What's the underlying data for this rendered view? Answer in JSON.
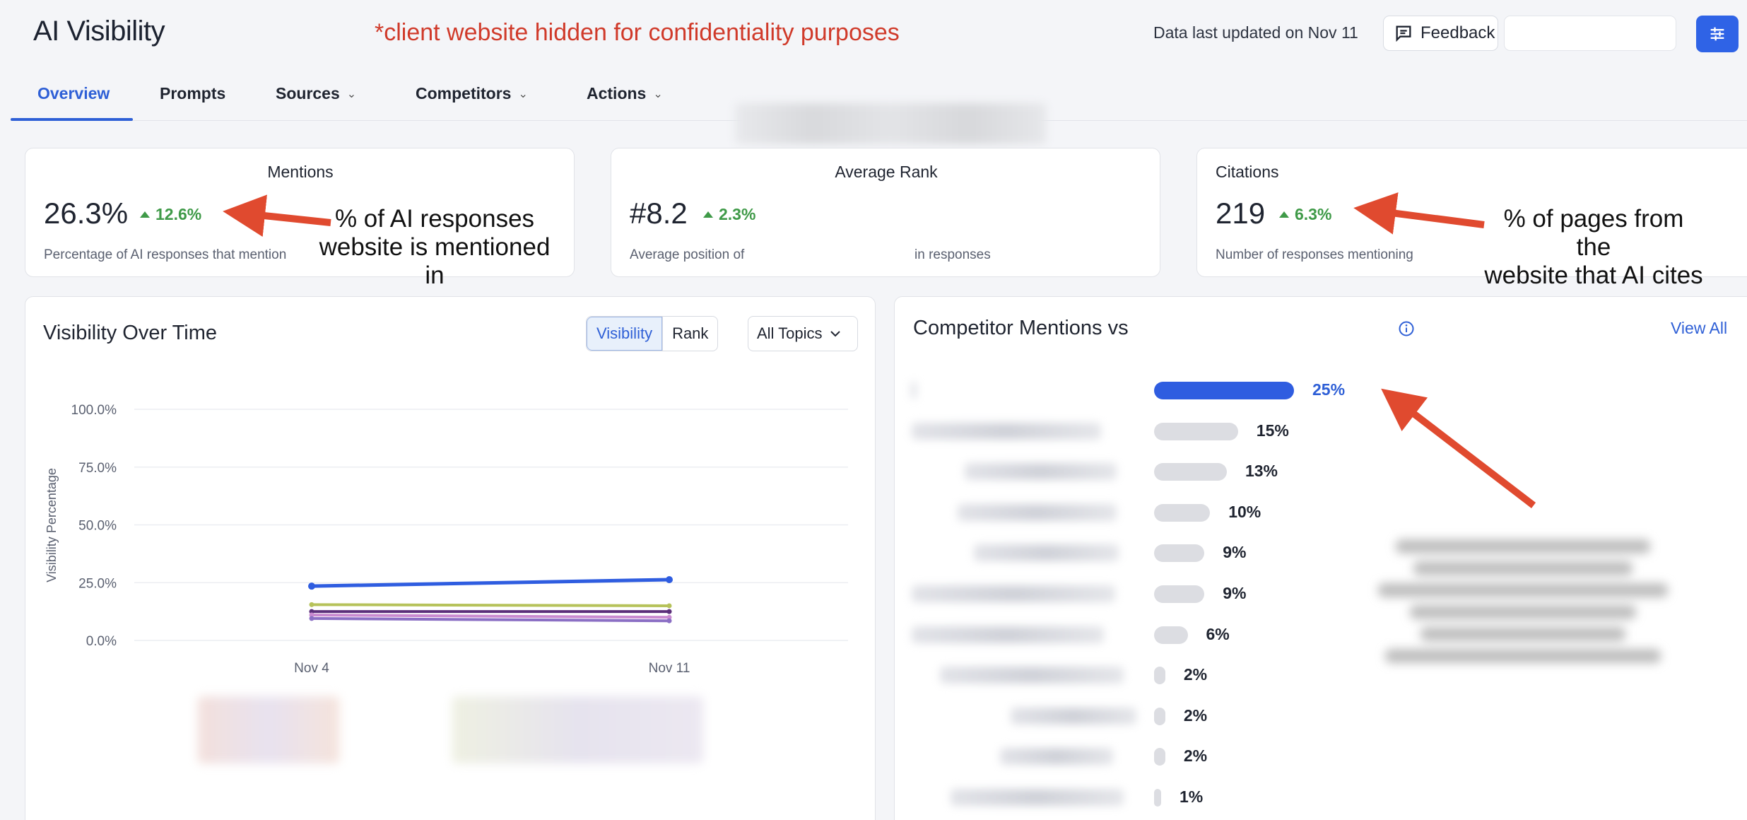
{
  "header": {
    "title": "AI Visibility",
    "confidentiality_note": "*client website hidden for confidentiality purposes",
    "updated_text": "Data last updated on Nov 11",
    "feedback_label": "Feedback",
    "settings_icon": "sliders-icon"
  },
  "tabs": [
    {
      "label": "Overview",
      "active": true,
      "dropdown": false
    },
    {
      "label": "Prompts",
      "active": false,
      "dropdown": false
    },
    {
      "label": "Sources",
      "active": false,
      "dropdown": true
    },
    {
      "label": "Competitors",
      "active": false,
      "dropdown": true
    },
    {
      "label": "Actions",
      "active": false,
      "dropdown": true
    }
  ],
  "stats": {
    "mentions": {
      "title": "Mentions",
      "value": "26.3%",
      "delta": "12.6%",
      "subtitle": "Percentage of AI responses that mention"
    },
    "rank": {
      "title": "Average Rank",
      "value": "#8.2",
      "delta": "2.3%",
      "subtitle_start": "Average position of",
      "subtitle_end": "in responses"
    },
    "citations": {
      "title": "Citations",
      "value": "219",
      "delta": "6.3%",
      "subtitle": "Number of responses mentioning"
    }
  },
  "annotations": {
    "mentions_line1": "% of AI responses",
    "mentions_line2": "website is mentioned in",
    "citations_line1": "% of pages from the",
    "citations_line2": "website that AI cites"
  },
  "visibility_panel": {
    "title": "Visibility Over Time",
    "toggle": {
      "visibility": "Visibility",
      "rank": "Rank",
      "selected": "Visibility"
    },
    "topics_label": "All Topics"
  },
  "chart_data": {
    "type": "line",
    "x": [
      "Nov 4",
      "Nov 11"
    ],
    "ylabel": "Visibility Percentage",
    "ylim": [
      0,
      100
    ],
    "yticks": [
      "100.0%",
      "75.0%",
      "50.0%",
      "25.0%",
      "0.0%"
    ],
    "grid": true,
    "series": [
      {
        "values": [
          23.5,
          26.3
        ],
        "color": "#2f5de0"
      },
      {
        "values": [
          15.5,
          15.0
        ],
        "color": "#b6c25a"
      },
      {
        "values": [
          12.5,
          12.5
        ],
        "color": "#5b2f7a"
      },
      {
        "values": [
          11.0,
          10.0
        ],
        "color": "#c98ad0"
      },
      {
        "values": [
          9.5,
          8.5
        ],
        "color": "#8b6fc4"
      }
    ]
  },
  "competitor_panel": {
    "title": "Competitor Mentions vs",
    "view_all_label": "View All",
    "info_icon": "info-icon",
    "rows": [
      {
        "pct": "25%",
        "value": 25,
        "highlight": true
      },
      {
        "pct": "15%",
        "value": 15,
        "highlight": false
      },
      {
        "pct": "13%",
        "value": 13,
        "highlight": false
      },
      {
        "pct": "10%",
        "value": 10,
        "highlight": false
      },
      {
        "pct": "9%",
        "value": 9,
        "highlight": false
      },
      {
        "pct": "9%",
        "value": 9,
        "highlight": false
      },
      {
        "pct": "6%",
        "value": 6,
        "highlight": false
      },
      {
        "pct": "2%",
        "value": 2,
        "highlight": false
      },
      {
        "pct": "2%",
        "value": 2,
        "highlight": false
      },
      {
        "pct": "2%",
        "value": 2,
        "highlight": false
      },
      {
        "pct": "1%",
        "value": 1,
        "highlight": false
      }
    ]
  },
  "colors": {
    "accent": "#2f5de0",
    "positive": "#3f9a48",
    "annotation_red": "#e04a2f"
  }
}
